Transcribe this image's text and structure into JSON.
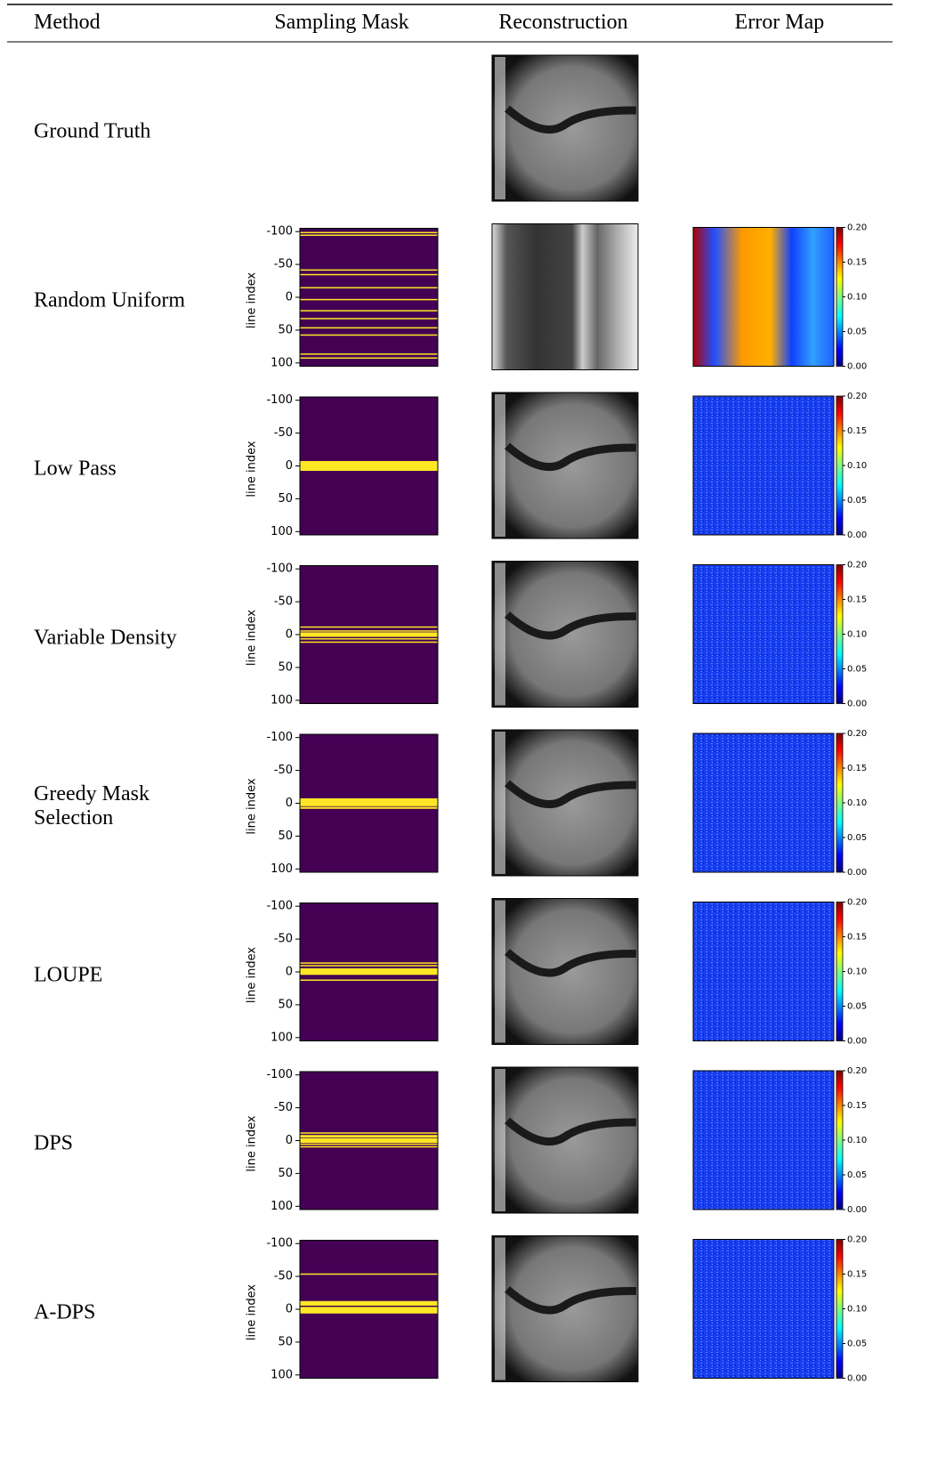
{
  "header": {
    "columns": [
      "Method",
      "Sampling Mask",
      "Reconstruction",
      "Error Map"
    ]
  },
  "mask_axis": {
    "ylabel": "line index",
    "ylim": [
      -105,
      105
    ],
    "yticks": [
      -100,
      -50,
      0,
      50,
      100
    ]
  },
  "colorbar": {
    "lim": [
      0,
      0.2
    ],
    "ticks": [
      {
        "value": 0.2,
        "label": "0.20"
      },
      {
        "value": 0.15,
        "label": "0.15"
      },
      {
        "value": 0.1,
        "label": "0.10"
      },
      {
        "value": 0.05,
        "label": "0.05"
      },
      {
        "value": 0,
        "label": "0.00"
      }
    ]
  },
  "rows": [
    {
      "method": "Ground Truth"
    },
    {
      "method": "Random Uniform",
      "mask_lines": [
        [
          -99,
          -99
        ],
        [
          -95,
          -95
        ],
        [
          -42,
          -42
        ],
        [
          -35,
          -35
        ],
        [
          -15,
          -15
        ],
        [
          3,
          3
        ],
        [
          20,
          20
        ],
        [
          32,
          32
        ],
        [
          46,
          46
        ],
        [
          57,
          57
        ],
        [
          86,
          86
        ],
        [
          92,
          92
        ]
      ]
    },
    {
      "method": "Low Pass",
      "mask_lines": [
        [
          -7,
          7
        ]
      ]
    },
    {
      "method": "Variable Density",
      "mask_lines": [
        [
          -12,
          -11
        ],
        [
          -6,
          -5
        ],
        [
          -3,
          3
        ],
        [
          6,
          7
        ],
        [
          11,
          12
        ]
      ]
    },
    {
      "method": "Greedy Mask Selection",
      "mask_lines": [
        [
          -7,
          4
        ],
        [
          6,
          8
        ]
      ]
    },
    {
      "method": "LOUPE",
      "mask_lines": [
        [
          -14,
          -13
        ],
        [
          -10,
          -9
        ],
        [
          -5,
          4
        ],
        [
          12,
          13
        ]
      ]
    },
    {
      "method": "DPS",
      "mask_lines": [
        [
          -12,
          -11
        ],
        [
          -8,
          -5
        ],
        [
          -3,
          3
        ],
        [
          5,
          6
        ],
        [
          9,
          10
        ]
      ]
    },
    {
      "method": "A-DPS",
      "mask_lines": [
        [
          -54,
          -54
        ],
        [
          -12,
          -6
        ],
        [
          -3,
          6
        ]
      ]
    }
  ]
}
